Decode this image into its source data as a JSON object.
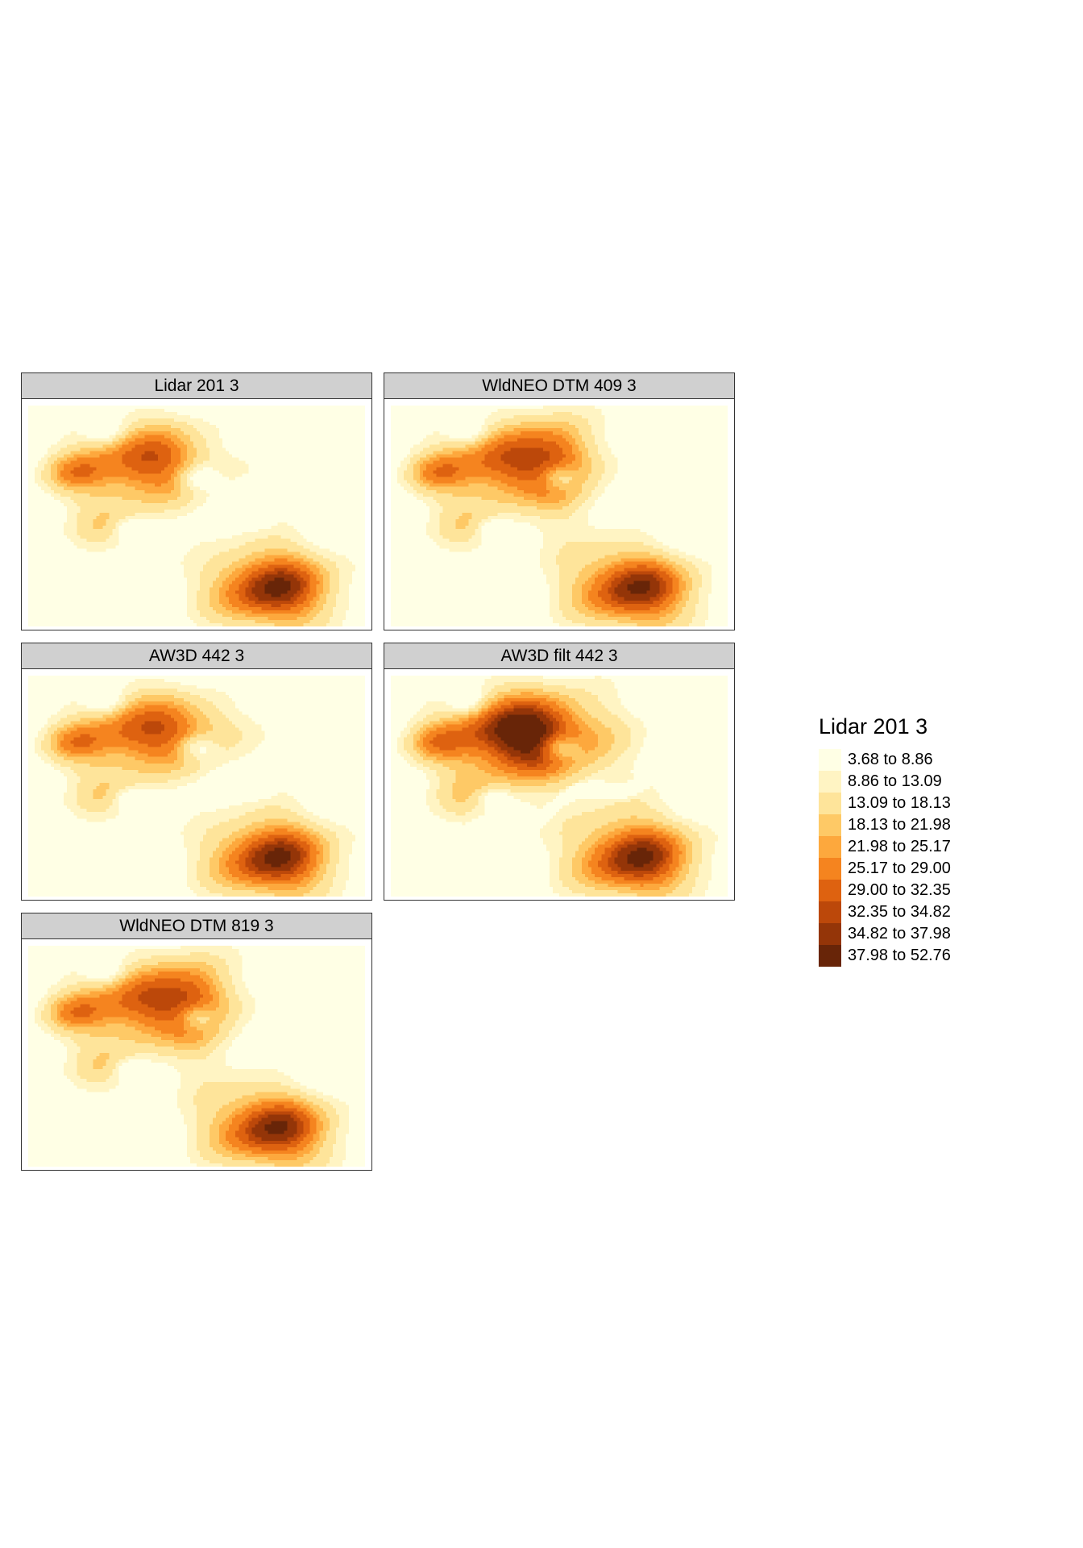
{
  "panels": [
    {
      "title": "Lidar 201 3",
      "variant": "lidar"
    },
    {
      "title": "WldNEO DTM 409 3",
      "variant": "wld409"
    },
    {
      "title": "AW3D 442 3",
      "variant": "aw3d"
    },
    {
      "title": "AW3D filt 442 3",
      "variant": "aw3dfilt"
    },
    {
      "title": "WldNEO DTM 819 3",
      "variant": "wld819"
    }
  ],
  "legend": {
    "title": "Lidar 201 3",
    "classes": [
      {
        "label": "3.68 to 8.86",
        "color": "#ffffe5"
      },
      {
        "label": "8.86 to 13.09",
        "color": "#fff4c3"
      },
      {
        "label": "13.09 to 18.13",
        "color": "#fee49a"
      },
      {
        "label": "18.13 to 21.98",
        "color": "#fec966"
      },
      {
        "label": "21.98 to 25.17",
        "color": "#fda83d"
      },
      {
        "label": "25.17 to 29.00",
        "color": "#f5841f"
      },
      {
        "label": "29.00 to 32.35",
        "color": "#de6210"
      },
      {
        "label": "32.35 to 34.82",
        "color": "#bc480a"
      },
      {
        "label": "34.82 to 37.98",
        "color": "#943508"
      },
      {
        "label": "37.98 to 52.76",
        "color": "#682508"
      }
    ]
  }
}
